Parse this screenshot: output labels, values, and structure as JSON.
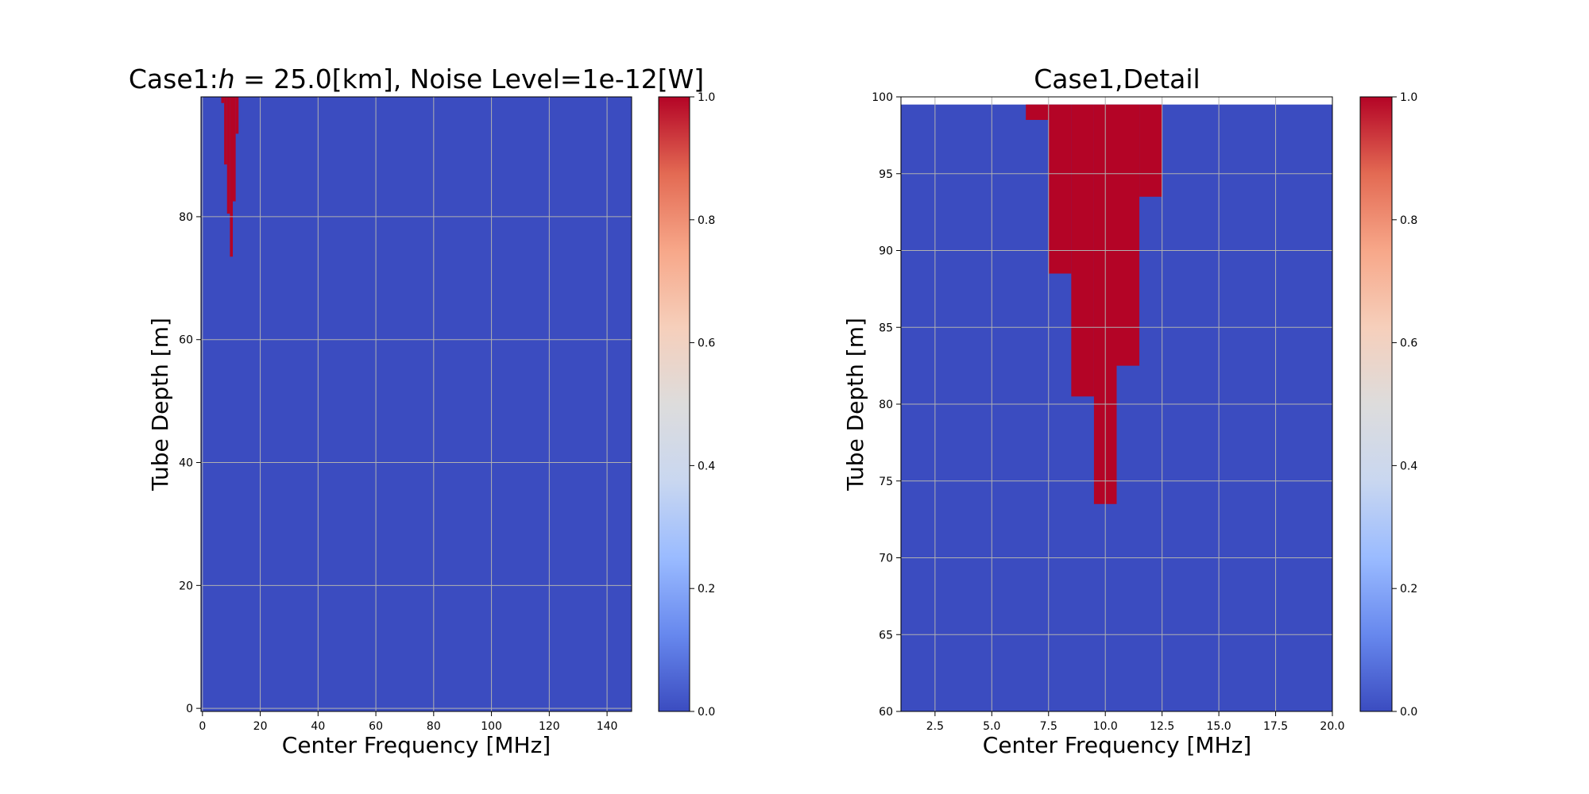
{
  "chart_data": [
    {
      "type": "heatmap",
      "title": "Case1:h = 25.0[km], Noise Level=1e-12[W]",
      "title_parts": {
        "prefix": "Case1:",
        "var": "h",
        "rest": " = 25.0[km], Noise Level=1e-12[W]"
      },
      "xlabel": "Center Frequency [MHz]",
      "ylabel": "Tube Depth [m]",
      "xlim": [
        -0.5,
        148.5
      ],
      "ylim": [
        -0.5,
        99.5
      ],
      "xticks": [
        0,
        20,
        40,
        60,
        80,
        100,
        120,
        140
      ],
      "xtick_labels": [
        "0",
        "20",
        "40",
        "60",
        "80",
        "100",
        "120",
        "140"
      ],
      "yticks": [
        0,
        20,
        40,
        60,
        80
      ],
      "ytick_labels": [
        "0",
        "20",
        "40",
        "60",
        "80"
      ],
      "grid": true,
      "colormap": "coolwarm",
      "value_range": [
        0,
        1
      ],
      "colorbar_ticks": [
        "0.0",
        "0.2",
        "0.4",
        "0.6",
        "0.8",
        "1.0"
      ],
      "background_value": 0,
      "regions": [
        {
          "x": [
            6.5,
            7.5
          ],
          "y": [
            98.5,
            99.5
          ],
          "value": 1
        },
        {
          "x": [
            7.5,
            8.5
          ],
          "y": [
            88.5,
            99.5
          ],
          "value": 1
        },
        {
          "x": [
            8.5,
            9.5
          ],
          "y": [
            80.5,
            99.5
          ],
          "value": 1
        },
        {
          "x": [
            9.5,
            10.5
          ],
          "y": [
            73.5,
            99.5
          ],
          "value": 1
        },
        {
          "x": [
            10.5,
            11.5
          ],
          "y": [
            82.5,
            99.5
          ],
          "value": 1
        },
        {
          "x": [
            11.5,
            12.5
          ],
          "y": [
            93.5,
            99.5
          ],
          "value": 1
        }
      ]
    },
    {
      "type": "heatmap",
      "title": "Case1,Detail",
      "xlabel": "Center Frequency [MHz]",
      "ylabel": "Tube Depth [m]",
      "xlim": [
        1.0,
        20.0
      ],
      "ylim": [
        60,
        100
      ],
      "xticks": [
        2.5,
        5.0,
        7.5,
        10.0,
        12.5,
        15.0,
        17.5,
        20.0
      ],
      "xtick_labels": [
        "2.5",
        "5.0",
        "7.5",
        "10.0",
        "12.5",
        "15.0",
        "17.5",
        "20.0"
      ],
      "yticks": [
        60,
        65,
        70,
        75,
        80,
        85,
        90,
        95,
        100
      ],
      "ytick_labels": [
        "60",
        "65",
        "70",
        "75",
        "80",
        "85",
        "90",
        "95",
        "100"
      ],
      "grid": true,
      "colormap": "coolwarm",
      "value_range": [
        0,
        1
      ],
      "colorbar_ticks": [
        "0.0",
        "0.2",
        "0.4",
        "0.6",
        "0.8",
        "1.0"
      ],
      "background_value": 0,
      "data_extent_y": [
        60,
        99.5
      ],
      "regions": [
        {
          "x": [
            6.5,
            7.5
          ],
          "y": [
            98.5,
            99.5
          ],
          "value": 1
        },
        {
          "x": [
            7.5,
            8.5
          ],
          "y": [
            88.5,
            99.5
          ],
          "value": 1
        },
        {
          "x": [
            8.5,
            9.5
          ],
          "y": [
            80.5,
            99.5
          ],
          "value": 1
        },
        {
          "x": [
            9.5,
            10.5
          ],
          "y": [
            73.5,
            99.5
          ],
          "value": 1
        },
        {
          "x": [
            10.5,
            11.5
          ],
          "y": [
            82.5,
            99.5
          ],
          "value": 1
        },
        {
          "x": [
            11.5,
            12.5
          ],
          "y": [
            93.5,
            99.5
          ],
          "value": 1
        }
      ]
    }
  ],
  "colors": {
    "low": "#3b4cc0",
    "high": "#b40426",
    "colormap_stops": [
      "#3b4cc0",
      "#6788ee",
      "#9abbff",
      "#c9d7f0",
      "#dddcdc",
      "#f6cfbb",
      "#f7a789",
      "#e36a53",
      "#b40426"
    ],
    "grid": "#b0b0b0",
    "axis": "#000000"
  }
}
